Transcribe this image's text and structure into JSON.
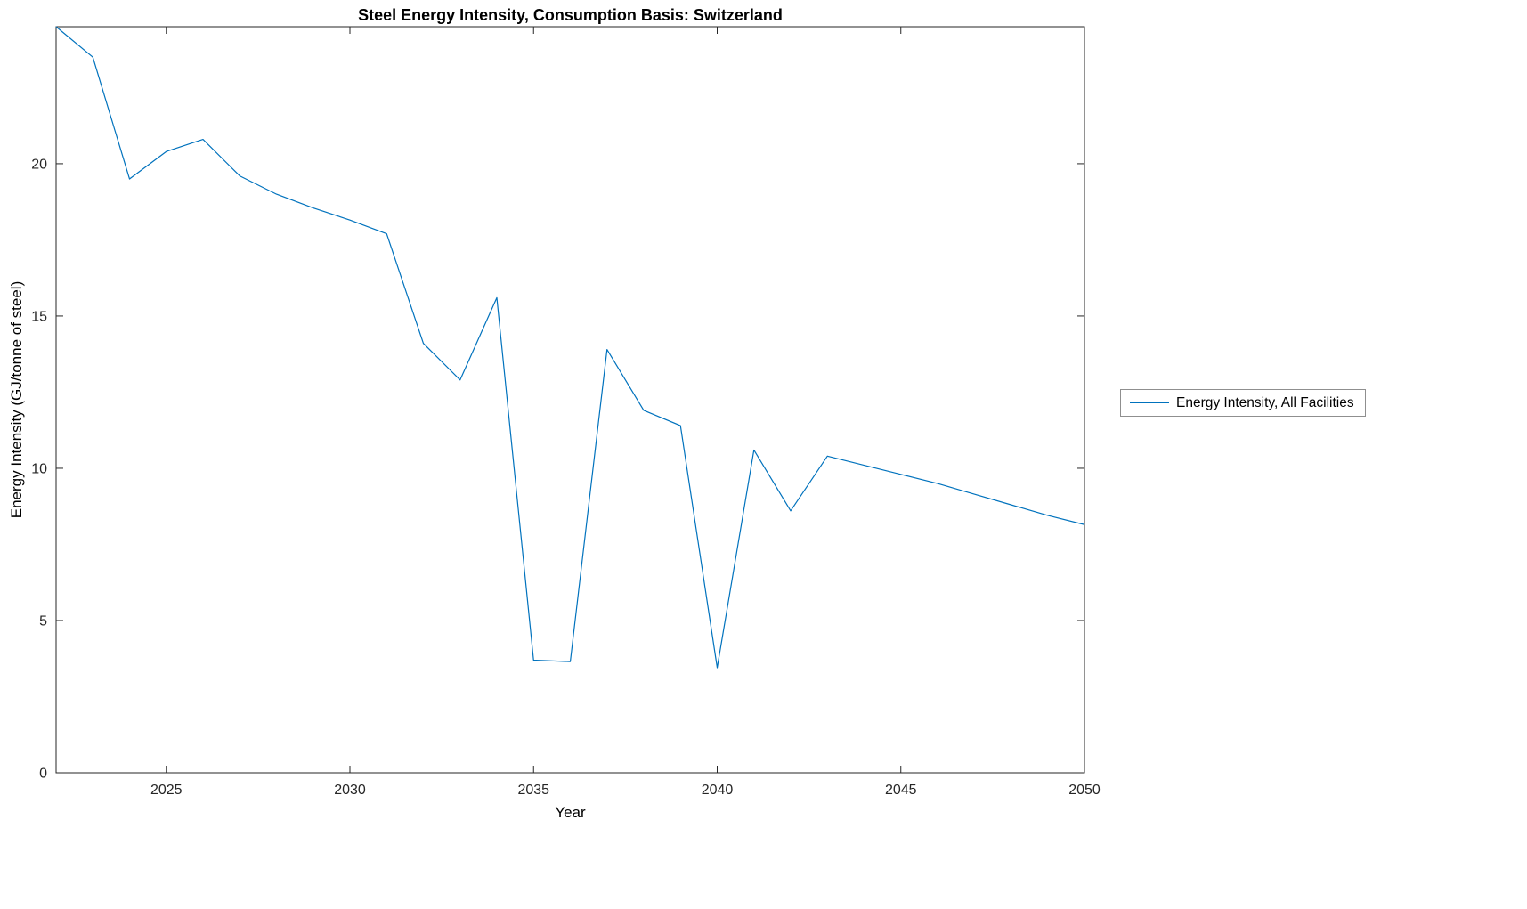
{
  "chart_data": {
    "type": "line",
    "title": "Steel Energy Intensity, Consumption Basis: Switzerland",
    "xlabel": "Year",
    "ylabel": "Energy Intensity (GJ/tonne of steel)",
    "legend_position": "right-outside",
    "grid": false,
    "line_color": "#0072BD",
    "xlim": [
      2022,
      2050
    ],
    "ylim": [
      0,
      24.5
    ],
    "xticks": [
      2025,
      2030,
      2035,
      2040,
      2045,
      2050
    ],
    "yticks": [
      0,
      5,
      10,
      15,
      20
    ],
    "x": [
      2022,
      2023,
      2024,
      2025,
      2026,
      2027,
      2028,
      2029,
      2030,
      2031,
      2032,
      2033,
      2034,
      2035,
      2036,
      2037,
      2038,
      2039,
      2040,
      2041,
      2042,
      2043,
      2044,
      2045,
      2046,
      2047,
      2048,
      2049,
      2050
    ],
    "series": [
      {
        "name": "Energy Intensity, All Facilities",
        "values": [
          24.5,
          23.5,
          19.5,
          20.4,
          20.8,
          19.6,
          19.0,
          18.55,
          18.15,
          17.7,
          14.1,
          12.9,
          15.6,
          3.7,
          3.65,
          13.9,
          11.9,
          11.4,
          3.45,
          10.6,
          8.6,
          10.4,
          10.1,
          9.8,
          9.5,
          9.15,
          8.8,
          8.45,
          8.15
        ]
      }
    ]
  }
}
